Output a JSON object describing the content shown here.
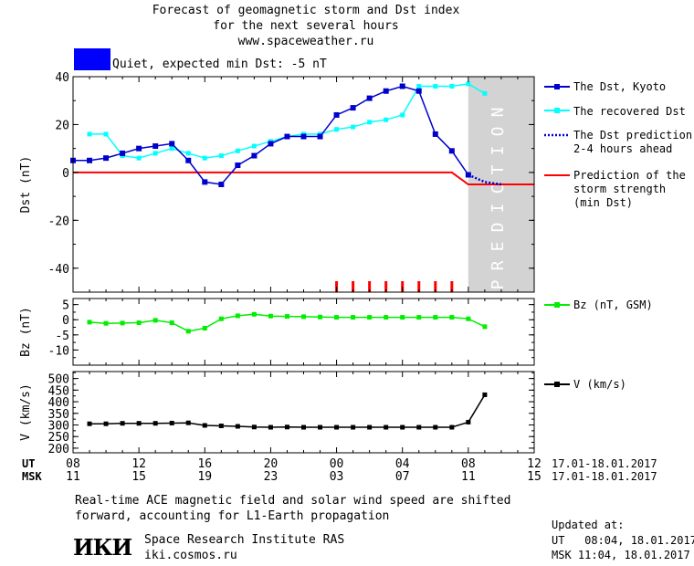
{
  "header": {
    "title_line1": "Forecast of geomagnetic storm and Dst index",
    "title_line2": "for the next several hours",
    "title_line3": "www.spaceweather.ru"
  },
  "status": {
    "text": "Quiet, expected min Dst: -5 nT",
    "color": "#0000ff"
  },
  "prediction_label": "PREDICTION",
  "legend": {
    "dst_kyoto": "The Dst, Kyoto",
    "recovered_dst": "The recovered Dst",
    "dst_prediction": "The Dst prediction\n2-4 hours ahead",
    "storm_strength": "Prediction of the\nstorm strength\n(min Dst)",
    "bz": "Bz (nT, GSM)",
    "v": "V (km/s)"
  },
  "axis_rows": {
    "ut_label": "UT",
    "msk_label": "MSK",
    "ut_ticks": [
      "08",
      "12",
      "16",
      "20",
      "00",
      "04",
      "08",
      "12"
    ],
    "msk_ticks": [
      "11",
      "15",
      "19",
      "23",
      "03",
      "07",
      "11",
      "15"
    ],
    "ut_range": "17.01-18.01.2017",
    "msk_range": "17.01-18.01.2017"
  },
  "footer": {
    "note_line1": "Real-time ACE magnetic field and solar wind speed are shifted",
    "note_line2": "forward, accounting for L1-Earth propagation",
    "logo": "ИКИ",
    "institute": "Space Research Institute RAS",
    "site": "iki.cosmos.ru",
    "updated_label": "Updated at:",
    "updated_ut": "UT   08:04, 18.01.2017",
    "updated_msk": "MSK 11:04, 18.01.2017"
  },
  "colors": {
    "dst_kyoto": "#0000cc",
    "recovered": "#00ffff",
    "storm": "#ff0000",
    "bz": "#00ee00",
    "v": "#000000",
    "prediction_shade": "#d3d3d3"
  },
  "chart_data": [
    {
      "type": "line",
      "ylabel": "Dst (nT)",
      "ylim": [
        -50,
        40
      ],
      "yticks": [
        -40,
        -20,
        0,
        20,
        40
      ],
      "x_hours_ut": [
        8,
        9,
        10,
        11,
        12,
        13,
        14,
        15,
        16,
        17,
        18,
        19,
        20,
        21,
        22,
        23,
        24,
        25,
        26,
        27,
        28,
        29,
        30,
        31,
        32
      ],
      "series": [
        {
          "name": "The Dst, Kyoto",
          "x": [
            8,
            9,
            10,
            11,
            12,
            13,
            14,
            15,
            16,
            17,
            18,
            19,
            20,
            21,
            22,
            23,
            24,
            25,
            26,
            27,
            28,
            29,
            30,
            31,
            32
          ],
          "y": [
            5,
            5,
            6,
            8,
            10,
            11,
            12,
            5,
            -4,
            -5,
            3,
            7,
            12,
            15,
            15,
            15,
            24,
            27,
            31,
            34,
            36,
            34,
            16,
            9,
            -1
          ]
        },
        {
          "name": "The recovered Dst",
          "x": [
            9,
            10,
            11,
            12,
            13,
            14,
            15,
            16,
            17,
            18,
            19,
            20,
            21,
            22,
            23,
            24,
            25,
            26,
            27,
            28,
            29,
            30,
            31,
            32,
            33
          ],
          "y": [
            16,
            16,
            7,
            6,
            8,
            10,
            8,
            6,
            7,
            9,
            11,
            13,
            15,
            16,
            16,
            18,
            19,
            21,
            22,
            24,
            36,
            36,
            36,
            37,
            33
          ]
        },
        {
          "name": "The Dst prediction 2-4 hours ahead",
          "x": [
            32,
            33,
            34
          ],
          "y": [
            -1,
            -4,
            -5
          ]
        },
        {
          "name": "Prediction of the storm strength (min Dst)",
          "x": [
            8,
            31,
            32,
            36
          ],
          "y": [
            0,
            0,
            -5,
            -5
          ]
        }
      ],
      "red_tick_hours": [
        24,
        25,
        26,
        27,
        28,
        29,
        30,
        31
      ]
    },
    {
      "type": "line",
      "ylabel": "Bz (nT)",
      "ylim": [
        -15,
        7
      ],
      "yticks": [
        -10,
        -5,
        0,
        5
      ],
      "series": [
        {
          "name": "Bz (nT, GSM)",
          "x": [
            9,
            10,
            11,
            12,
            13,
            14,
            15,
            16,
            17,
            18,
            19,
            20,
            21,
            22,
            23,
            24,
            25,
            26,
            27,
            28,
            29,
            30,
            31,
            32,
            33
          ],
          "y": [
            -0.8,
            -1.2,
            -1.1,
            -1.0,
            -0.2,
            -1.0,
            -3.8,
            -2.8,
            0.3,
            1.3,
            1.8,
            1.2,
            1.1,
            1.0,
            0.9,
            0.8,
            0.8,
            0.8,
            0.8,
            0.8,
            0.8,
            0.8,
            0.8,
            0.3,
            -2.3
          ]
        }
      ]
    },
    {
      "type": "line",
      "ylabel": "V (km/s)",
      "ylim": [
        180,
        530
      ],
      "yticks": [
        200,
        250,
        300,
        350,
        400,
        450,
        500
      ],
      "series": [
        {
          "name": "V (km/s)",
          "x": [
            9,
            10,
            11,
            12,
            13,
            14,
            15,
            16,
            17,
            18,
            19,
            20,
            21,
            22,
            23,
            24,
            25,
            26,
            27,
            28,
            29,
            30,
            31,
            32,
            33
          ],
          "y": [
            305,
            305,
            307,
            307,
            307,
            308,
            309,
            298,
            296,
            294,
            291,
            290,
            291,
            290,
            290,
            290,
            290,
            290,
            290,
            290,
            290,
            290,
            290,
            312,
            430
          ]
        }
      ]
    }
  ]
}
